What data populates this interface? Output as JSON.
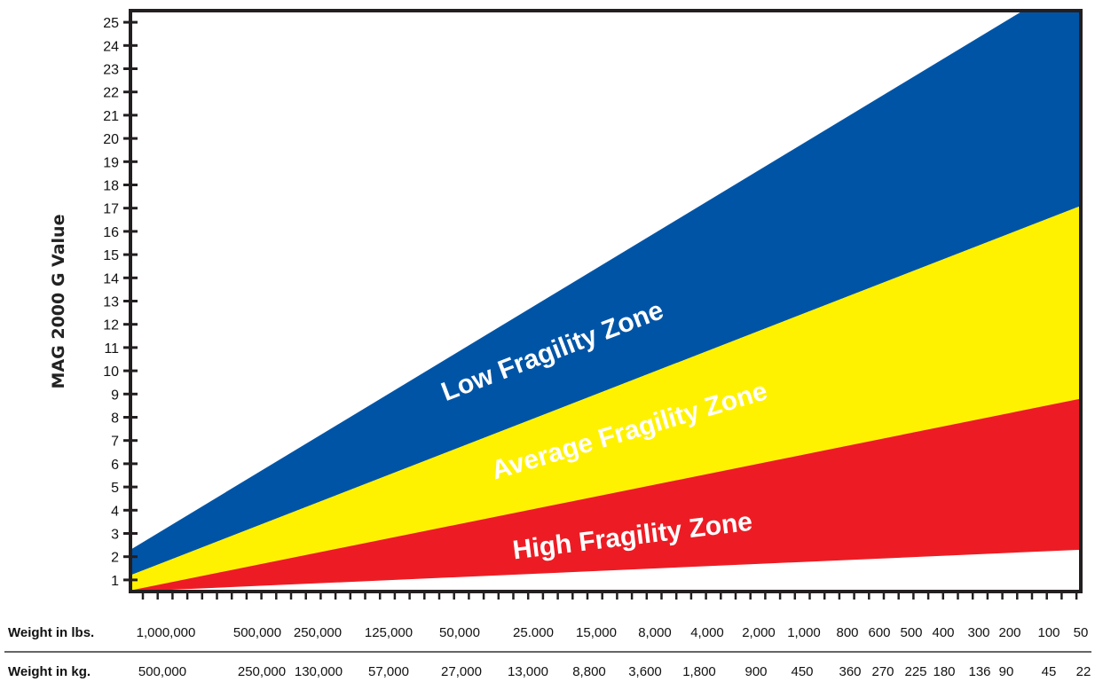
{
  "chart_data": {
    "type": "area",
    "ylabel": "MAG 2000 G Value",
    "ylim": [
      0.5,
      25.5
    ],
    "y_ticks": [
      1,
      2,
      3,
      4,
      5,
      6,
      7,
      8,
      9,
      10,
      11,
      12,
      13,
      14,
      15,
      16,
      17,
      18,
      19,
      20,
      21,
      22,
      23,
      24,
      25
    ],
    "x_axis_lbs": {
      "label": "Weight in lbs.",
      "ticks": [
        "1,000,000",
        "500,000",
        "250,000",
        "125,000",
        "50,000",
        "25.000",
        "15,000",
        "8,000",
        "4,000",
        "2,000",
        "1,000",
        "800",
        "600",
        "500",
        "400",
        "300",
        "200",
        "100",
        "50"
      ]
    },
    "x_axis_kg": {
      "label": "Weight in kg.",
      "ticks": [
        "500,000",
        "250,000",
        "130,000",
        "57,000",
        "27,000",
        "13,000",
        "8,800",
        "3,600",
        "1,800",
        "900",
        "450",
        "360",
        "270",
        "225",
        "180",
        "136",
        "90",
        "45",
        "22"
      ]
    },
    "zone_boundaries": [
      {
        "name": "lower",
        "start": 0.5,
        "end": 2.3
      },
      {
        "name": "high-average",
        "start": 0.55,
        "end": 8.8
      },
      {
        "name": "average-low",
        "start": 1.2,
        "end": 17.1
      },
      {
        "name": "upper",
        "start": 2.3,
        "end": 27.0
      }
    ],
    "zones": [
      {
        "label": "High Fragility Zone",
        "color": "#ed1c24"
      },
      {
        "label": "Average Fragility Zone",
        "color": "#fff200"
      },
      {
        "label": "Low Fragility Zone",
        "color": "#0054a6"
      }
    ],
    "grid": false
  }
}
